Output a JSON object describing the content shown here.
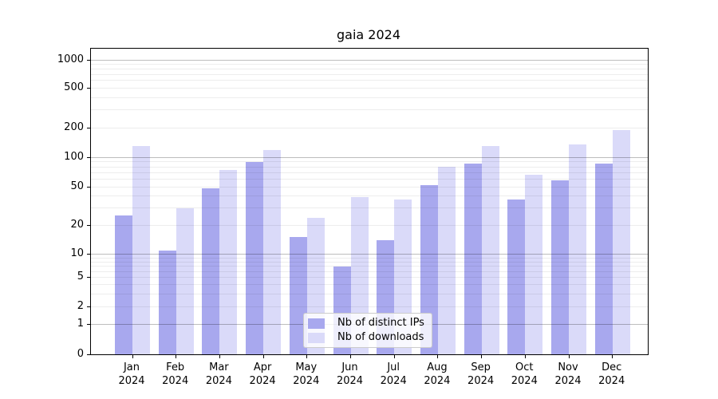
{
  "chart_data": {
    "type": "bar",
    "title": "gaia 2024",
    "categories": [
      {
        "month": "Jan",
        "year": "2024"
      },
      {
        "month": "Feb",
        "year": "2024"
      },
      {
        "month": "Mar",
        "year": "2024"
      },
      {
        "month": "Apr",
        "year": "2024"
      },
      {
        "month": "May",
        "year": "2024"
      },
      {
        "month": "Jun",
        "year": "2024"
      },
      {
        "month": "Jul",
        "year": "2024"
      },
      {
        "month": "Aug",
        "year": "2024"
      },
      {
        "month": "Sep",
        "year": "2024"
      },
      {
        "month": "Oct",
        "year": "2024"
      },
      {
        "month": "Nov",
        "year": "2024"
      },
      {
        "month": "Dec",
        "year": "2024"
      }
    ],
    "series": [
      {
        "name": "Nb of distinct IPs",
        "color": "#a8a8ee",
        "values": [
          25,
          11,
          48,
          90,
          15,
          7,
          14,
          52,
          87,
          37,
          58,
          87
        ]
      },
      {
        "name": "Nb of downloads",
        "color": "#dadaf9",
        "values": [
          130,
          30,
          74,
          118,
          24,
          39,
          37,
          80,
          130,
          66,
          135,
          190
        ]
      }
    ],
    "yscale": "symlog",
    "y_ticks": [
      1000,
      500,
      200,
      100,
      50,
      20,
      10,
      5,
      2,
      1,
      0
    ],
    "y_tick_labels": [
      "1000",
      "500",
      "200",
      "100",
      "50",
      "20",
      "10",
      "5",
      "2",
      "1",
      "0"
    ],
    "ylim": [
      0,
      1300
    ],
    "grid": "horizontal major and minor",
    "legend_position": "lower center"
  }
}
